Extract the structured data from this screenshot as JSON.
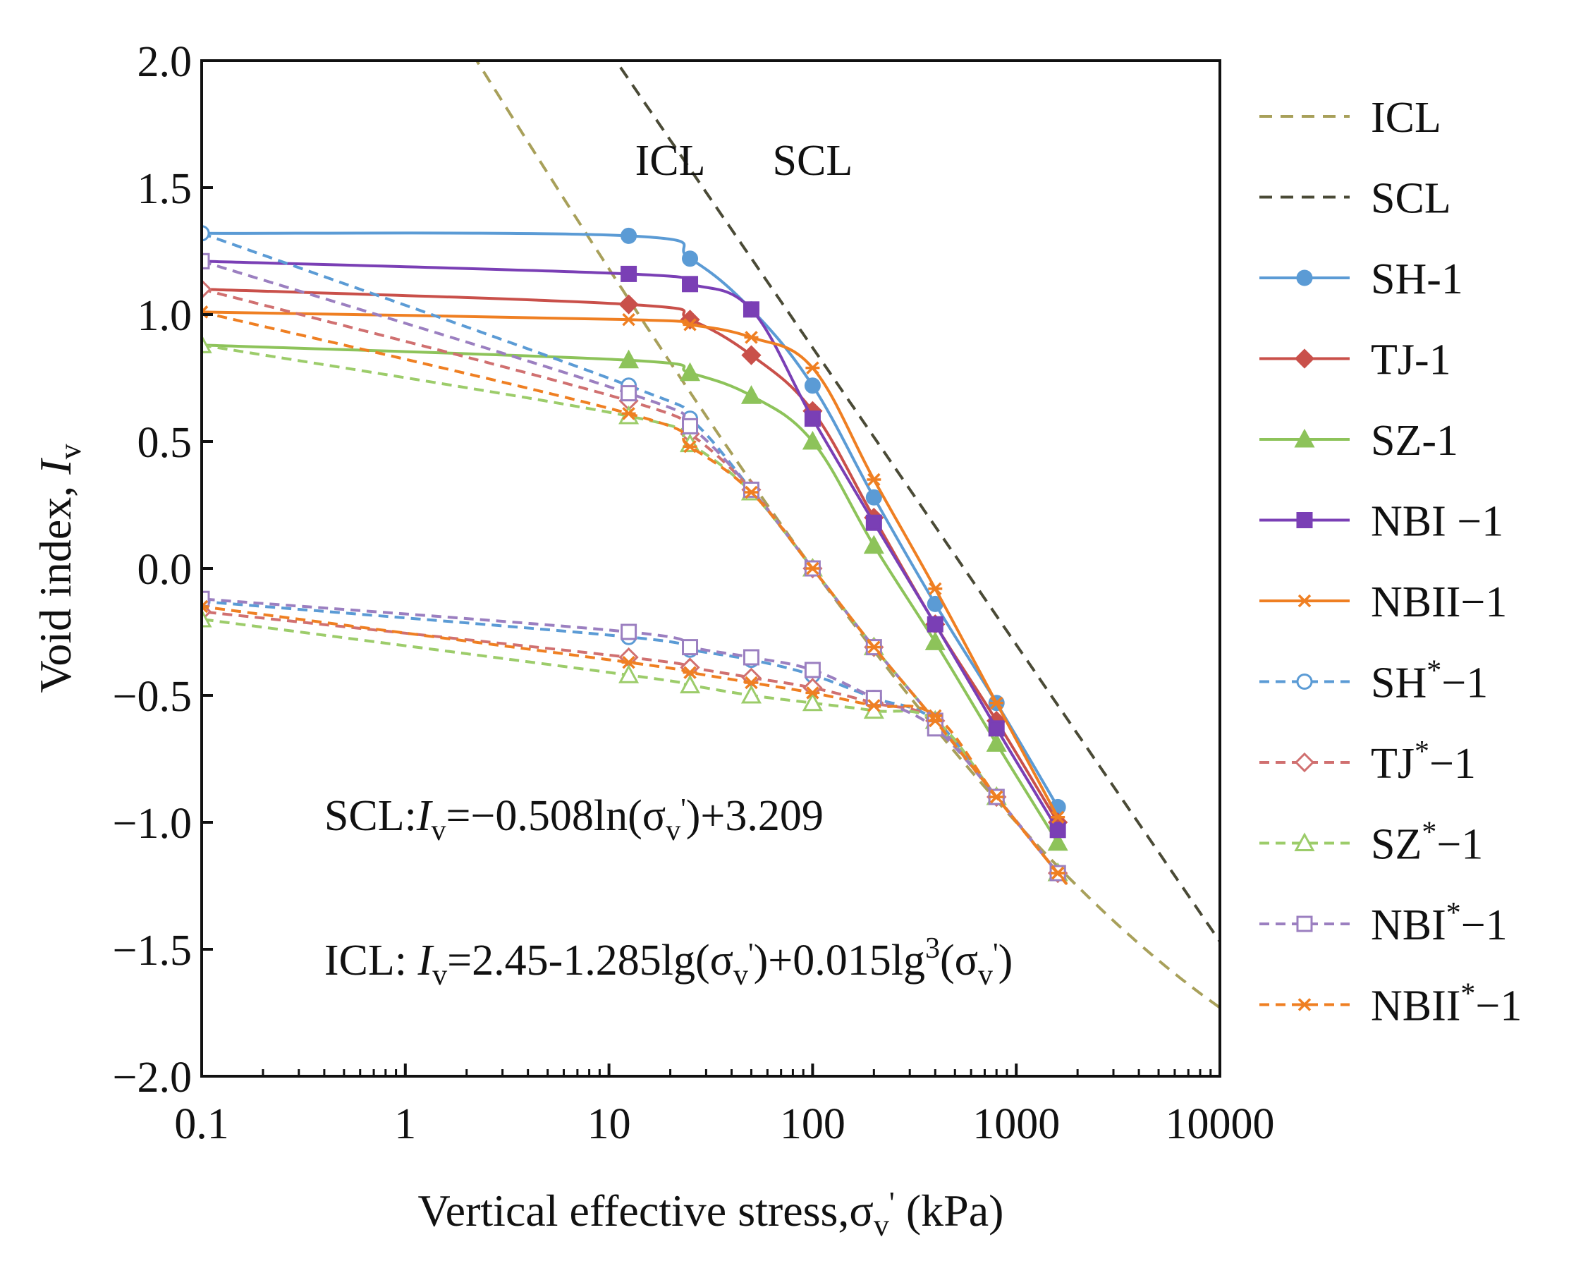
{
  "chart_data": {
    "type": "line",
    "title": "",
    "xlabel": {
      "main": "Vertical effective stress,",
      "sigma": "σ",
      "sub": "v",
      "prime": "'",
      "unit": " (kPa)"
    },
    "ylabel": {
      "main": "Void index, ",
      "var": "I",
      "sub": "v"
    },
    "x_scale": "log",
    "xlim": [
      0.1,
      10000
    ],
    "ylim": [
      -2.0,
      2.0
    ],
    "x_ticks": [
      {
        "v": 0.1,
        "label": "0.1"
      },
      {
        "v": 1,
        "label": "1"
      },
      {
        "v": 10,
        "label": "10"
      },
      {
        "v": 100,
        "label": "100"
      },
      {
        "v": 1000,
        "label": "1000"
      },
      {
        "v": 10000,
        "label": "10000"
      }
    ],
    "y_ticks": [
      {
        "v": 2.0,
        "label": "2.0"
      },
      {
        "v": 1.5,
        "label": "1.5"
      },
      {
        "v": 1.0,
        "label": "1.0"
      },
      {
        "v": 0.5,
        "label": "0.5"
      },
      {
        "v": 0.0,
        "label": "0.0"
      },
      {
        "v": -0.5,
        "label": "−0.5"
      },
      {
        "v": -1.0,
        "label": "−1.0"
      },
      {
        "v": -1.5,
        "label": "−1.5"
      },
      {
        "v": -2.0,
        "label": "−2.0"
      }
    ],
    "grid": false,
    "legend_position": "right",
    "annotations": [
      {
        "text": "ICL",
        "x": 20,
        "y": 1.55
      },
      {
        "text": "SCL",
        "x": 100,
        "y": 1.55
      }
    ],
    "equations": {
      "scl": {
        "prefix": "SCL:",
        "var": "I",
        "sub": "v",
        "body": "=−0.508ln(σ",
        "sub2": "v",
        "prime": "'",
        "tail": ")+3.209",
        "x": 0.4,
        "y": -1.03
      },
      "icl": {
        "prefix": "ICL: ",
        "var": "I",
        "sub": "v",
        "body": "=2.45-1.285lg(σ",
        "sub2": "v",
        "prime": "'",
        "mid": ")+0.015lg",
        "sup": "3",
        "body2": "(σ",
        "sub3": "v",
        "prime2": "'",
        "tail": ")",
        "x": 0.4,
        "y": -1.6
      }
    },
    "series": [
      {
        "name": "ICL",
        "label": "ICL",
        "color": "#a8a05a",
        "style": "dashed",
        "marker": "none",
        "curve": "icl"
      },
      {
        "name": "SCL",
        "label": "SCL",
        "color": "#4a4a36",
        "style": "dashed",
        "marker": "none",
        "curve": "scl"
      },
      {
        "name": "SH-1",
        "label": "SH-1",
        "color": "#5b9bd5",
        "style": "solid",
        "marker": "circle",
        "fill": true,
        "x": [
          0.1,
          12.5,
          25,
          50,
          100,
          200,
          400,
          800,
          1600
        ],
        "y": [
          1.32,
          1.31,
          1.22,
          1.02,
          0.72,
          0.28,
          -0.14,
          -0.53,
          -0.94
        ]
      },
      {
        "name": "TJ-1",
        "label": "TJ-1",
        "color": "#c9504a",
        "style": "solid",
        "marker": "diamond",
        "fill": true,
        "x": [
          0.1,
          12.5,
          25,
          50,
          100,
          200,
          400,
          800,
          1600
        ],
        "y": [
          1.1,
          1.04,
          0.98,
          0.84,
          0.62,
          0.2,
          -0.22,
          -0.6,
          -1.0
        ]
      },
      {
        "name": "SZ-1",
        "label": "SZ-1",
        "color": "#8dc35a",
        "style": "solid",
        "marker": "triangle",
        "fill": true,
        "x": [
          0.1,
          12.5,
          25,
          50,
          100,
          200,
          400,
          800,
          1600
        ],
        "y": [
          0.88,
          0.82,
          0.77,
          0.68,
          0.5,
          0.09,
          -0.29,
          -0.69,
          -1.08
        ]
      },
      {
        "name": "NBI-1",
        "label": "NBI −1",
        "color": "#7a3fb5",
        "style": "solid",
        "marker": "square",
        "fill": true,
        "x": [
          0.1,
          12.5,
          25,
          50,
          100,
          200,
          400,
          800,
          1600
        ],
        "y": [
          1.21,
          1.16,
          1.12,
          1.02,
          0.59,
          0.18,
          -0.22,
          -0.63,
          -1.03
        ]
      },
      {
        "name": "NBII-1",
        "label": "NBII−1",
        "color": "#ef7f22",
        "style": "solid",
        "marker": "star",
        "fill": true,
        "x": [
          0.1,
          12.5,
          25,
          50,
          100,
          200,
          400,
          800,
          1600
        ],
        "y": [
          1.01,
          0.98,
          0.96,
          0.91,
          0.79,
          0.35,
          -0.08,
          -0.53,
          -0.98
        ]
      },
      {
        "name": "SH*-1",
        "label": "SH",
        "sup": "*",
        "tail": "−1",
        "color": "#5b9bd5",
        "style": "dashed",
        "marker": "circle",
        "fill": false,
        "x": [
          0.1,
          12.5,
          25,
          50,
          100,
          200,
          400,
          800,
          1600,
          1600,
          800,
          400,
          200,
          100,
          50,
          25,
          12.5,
          0.1
        ],
        "y": [
          1.32,
          0.72,
          0.59,
          0.31,
          0.0,
          -0.31,
          -0.6,
          -0.9,
          -1.2,
          -1.2,
          -0.9,
          -0.6,
          -0.51,
          -0.42,
          -0.36,
          -0.32,
          -0.27,
          -0.13
        ]
      },
      {
        "name": "TJ*-1",
        "label": "TJ",
        "sup": "*",
        "tail": "−1",
        "color": "#d07070",
        "style": "dashed",
        "marker": "diamond",
        "fill": false,
        "x": [
          0.1,
          12.5,
          25,
          50,
          100,
          200,
          400,
          800,
          1600,
          1600,
          800,
          400,
          200,
          100,
          50,
          25,
          12.5,
          0.1
        ],
        "y": [
          1.1,
          0.66,
          0.53,
          0.31,
          0.0,
          -0.31,
          -0.6,
          -0.9,
          -1.2,
          -1.2,
          -0.9,
          -0.6,
          -0.53,
          -0.47,
          -0.43,
          -0.39,
          -0.35,
          -0.17
        ]
      },
      {
        "name": "SZ*-1",
        "label": "SZ",
        "sup": "*",
        "tail": "−1",
        "color": "#9ccc6a",
        "style": "dashed",
        "marker": "triangle",
        "fill": false,
        "x": [
          0.1,
          12.5,
          25,
          50,
          100,
          200,
          400,
          800,
          1600,
          1600,
          800,
          400,
          200,
          100,
          50,
          25,
          12.5,
          0.1
        ],
        "y": [
          0.88,
          0.6,
          0.49,
          0.3,
          0.0,
          -0.31,
          -0.6,
          -0.9,
          -1.2,
          -1.2,
          -0.9,
          -0.6,
          -0.56,
          -0.53,
          -0.5,
          -0.46,
          -0.42,
          -0.2
        ]
      },
      {
        "name": "NBI*-1",
        "label": "NBI",
        "sup": "*",
        "tail": "−1",
        "color": "#9b7fc0",
        "style": "dashed",
        "marker": "square",
        "fill": false,
        "x": [
          0.1,
          12.5,
          25,
          50,
          100,
          200,
          400,
          800,
          1600,
          1600,
          800,
          400,
          200,
          100,
          50,
          25,
          12.5,
          0.1
        ],
        "y": [
          1.21,
          0.69,
          0.56,
          0.31,
          0.0,
          -0.31,
          -0.6,
          -0.9,
          -1.2,
          -1.2,
          -0.9,
          -0.63,
          -0.51,
          -0.4,
          -0.35,
          -0.31,
          -0.25,
          -0.12
        ]
      },
      {
        "name": "NBII*-1",
        "label": "NBII",
        "sup": "*",
        "tail": "−1",
        "color": "#ef7f22",
        "style": "dashed",
        "marker": "star",
        "fill": false,
        "x": [
          0.1,
          12.5,
          25,
          50,
          100,
          200,
          400,
          800,
          1600,
          1600,
          800,
          400,
          200,
          100,
          50,
          25,
          12.5,
          0.1
        ],
        "y": [
          1.01,
          0.61,
          0.48,
          0.3,
          0.0,
          -0.31,
          -0.6,
          -0.9,
          -1.2,
          -1.2,
          -0.9,
          -0.58,
          -0.54,
          -0.49,
          -0.45,
          -0.41,
          -0.37,
          -0.15
        ]
      }
    ]
  }
}
